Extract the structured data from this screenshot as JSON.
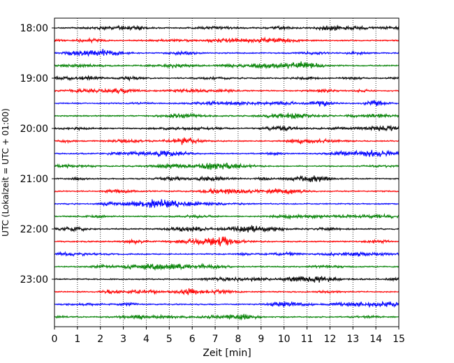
{
  "chart_data": {
    "type": "line",
    "title": "",
    "xlabel": "Zeit  [min]",
    "ylabel": "UTC (Lokalzeit = UTC + 01:00)",
    "xlim": [
      0,
      15
    ],
    "x_ticks": [
      "0",
      "1",
      "2",
      "3",
      "4",
      "5",
      "6",
      "7",
      "8",
      "9",
      "10",
      "11",
      "12",
      "13",
      "14",
      "15"
    ],
    "y_ticks": [
      "18:00",
      "19:00",
      "20:00",
      "21:00",
      "22:00",
      "23:00"
    ],
    "grid": "vertical dotted at each minute",
    "trace_interval_minutes": 15,
    "trace_start_times": [
      "18:00",
      "18:15",
      "18:30",
      "18:45",
      "19:00",
      "19:15",
      "19:30",
      "19:45",
      "20:00",
      "20:15",
      "20:30",
      "20:45",
      "21:00",
      "21:15",
      "21:30",
      "21:45",
      "22:00",
      "22:15",
      "22:30",
      "22:45",
      "23:00",
      "23:15",
      "23:30",
      "23:45"
    ],
    "trace_colors": [
      "#000000",
      "#ff0000",
      "#0000ff",
      "#008000"
    ]
  }
}
